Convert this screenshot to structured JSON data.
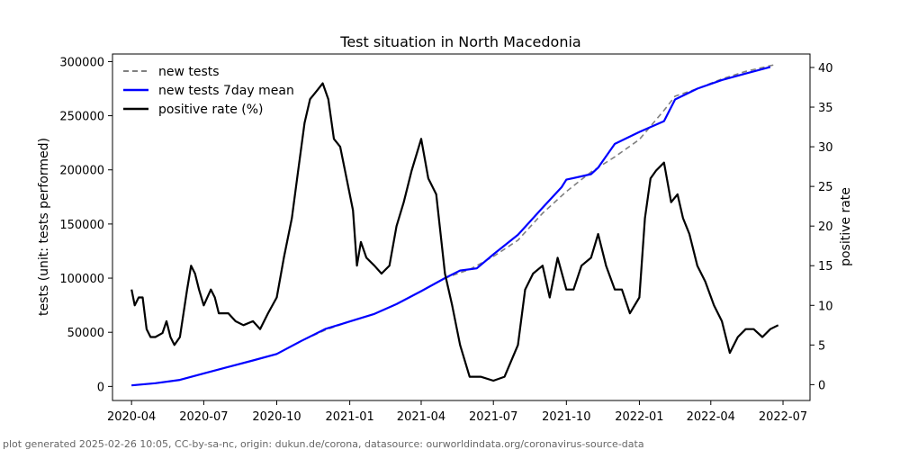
{
  "chart_data": {
    "type": "line",
    "title": "Test situation in North Macedonia",
    "ylabel_left": "tests (unit: tests performed)",
    "ylabel_right": "positive rate",
    "xlim": [
      "2020-03-08",
      "2022-08-04"
    ],
    "ylim_left": [
      -13000,
      307000
    ],
    "ylim_right": [
      -2,
      41.7
    ],
    "x_ticks": [
      "2020-04",
      "2020-07",
      "2020-10",
      "2021-01",
      "2021-04",
      "2021-07",
      "2021-10",
      "2022-01",
      "2022-04",
      "2022-07"
    ],
    "y_ticks_left": [
      0,
      50000,
      100000,
      150000,
      200000,
      250000,
      300000
    ],
    "y_ticks_right": [
      0,
      5,
      10,
      15,
      20,
      25,
      30,
      35,
      40
    ],
    "legend_position": "top-left",
    "series": [
      {
        "name": "new tests",
        "axis": "left",
        "color": "#808080",
        "style": "dashed",
        "points": [
          [
            "2020-04-01",
            1000
          ],
          [
            "2020-05-01",
            3000
          ],
          [
            "2020-06-01",
            6000
          ],
          [
            "2020-07-01",
            12000
          ],
          [
            "2020-08-01",
            18000
          ],
          [
            "2020-09-01",
            24000
          ],
          [
            "2020-10-01",
            30000
          ],
          [
            "2020-11-01",
            42000
          ],
          [
            "2020-12-01",
            52000
          ],
          [
            "2021-01-01",
            60000
          ],
          [
            "2021-02-01",
            67000
          ],
          [
            "2021-03-01",
            76000
          ],
          [
            "2021-04-01",
            88000
          ],
          [
            "2021-05-01",
            100000
          ],
          [
            "2021-06-01",
            108000
          ],
          [
            "2021-07-01",
            120000
          ],
          [
            "2021-08-01",
            135000
          ],
          [
            "2021-09-01",
            160000
          ],
          [
            "2021-10-01",
            180000
          ],
          [
            "2021-11-01",
            198000
          ],
          [
            "2021-12-01",
            212000
          ],
          [
            "2022-01-01",
            228000
          ],
          [
            "2022-02-01",
            255000
          ],
          [
            "2022-02-15",
            268000
          ],
          [
            "2022-03-15",
            275000
          ],
          [
            "2022-04-15",
            284000
          ],
          [
            "2022-05-15",
            291000
          ],
          [
            "2022-06-20",
            297000
          ]
        ]
      },
      {
        "name": "new tests 7day mean",
        "axis": "left",
        "color": "#0000ff",
        "style": "solid",
        "points": [
          [
            "2020-04-01",
            1000
          ],
          [
            "2020-05-01",
            3000
          ],
          [
            "2020-06-01",
            6000
          ],
          [
            "2020-07-01",
            12000
          ],
          [
            "2020-08-01",
            18000
          ],
          [
            "2020-09-01",
            24000
          ],
          [
            "2020-10-01",
            30000
          ],
          [
            "2020-11-01",
            42000
          ],
          [
            "2020-12-01",
            53000
          ],
          [
            "2021-01-01",
            60000
          ],
          [
            "2021-02-01",
            67000
          ],
          [
            "2021-03-01",
            76000
          ],
          [
            "2021-04-01",
            88000
          ],
          [
            "2021-05-01",
            100000
          ],
          [
            "2021-05-20",
            107000
          ],
          [
            "2021-06-10",
            109000
          ],
          [
            "2021-07-01",
            122000
          ],
          [
            "2021-08-01",
            140000
          ],
          [
            "2021-09-01",
            165000
          ],
          [
            "2021-09-25",
            184000
          ],
          [
            "2021-10-01",
            191000
          ],
          [
            "2021-11-01",
            196000
          ],
          [
            "2021-11-10",
            202000
          ],
          [
            "2021-12-01",
            224000
          ],
          [
            "2022-01-01",
            235000
          ],
          [
            "2022-02-01",
            245000
          ],
          [
            "2022-02-15",
            265000
          ],
          [
            "2022-03-15",
            275000
          ],
          [
            "2022-04-15",
            283000
          ],
          [
            "2022-05-15",
            289000
          ],
          [
            "2022-06-15",
            295000
          ]
        ]
      },
      {
        "name": "positive rate (%)",
        "axis": "right",
        "color": "#000000",
        "style": "solid",
        "points": [
          [
            "2020-04-01",
            12
          ],
          [
            "2020-04-05",
            10
          ],
          [
            "2020-04-10",
            11
          ],
          [
            "2020-04-15",
            11
          ],
          [
            "2020-04-20",
            7
          ],
          [
            "2020-04-25",
            6
          ],
          [
            "2020-05-01",
            6
          ],
          [
            "2020-05-10",
            6.5
          ],
          [
            "2020-05-15",
            8
          ],
          [
            "2020-05-20",
            6
          ],
          [
            "2020-05-25",
            5
          ],
          [
            "2020-06-01",
            6
          ],
          [
            "2020-06-10",
            12
          ],
          [
            "2020-06-15",
            15
          ],
          [
            "2020-06-20",
            14
          ],
          [
            "2020-06-25",
            12
          ],
          [
            "2020-07-01",
            10
          ],
          [
            "2020-07-10",
            12
          ],
          [
            "2020-07-15",
            11
          ],
          [
            "2020-07-20",
            9
          ],
          [
            "2020-08-01",
            9
          ],
          [
            "2020-08-10",
            8
          ],
          [
            "2020-08-20",
            7.5
          ],
          [
            "2020-09-01",
            8
          ],
          [
            "2020-09-10",
            7
          ],
          [
            "2020-09-20",
            9
          ],
          [
            "2020-10-01",
            11
          ],
          [
            "2020-10-10",
            16
          ],
          [
            "2020-10-20",
            21
          ],
          [
            "2020-10-28",
            27
          ],
          [
            "2020-11-05",
            33
          ],
          [
            "2020-11-12",
            36
          ],
          [
            "2020-11-20",
            37
          ],
          [
            "2020-11-28",
            38
          ],
          [
            "2020-12-05",
            36
          ],
          [
            "2020-12-12",
            31
          ],
          [
            "2020-12-20",
            30
          ],
          [
            "2020-12-28",
            26
          ],
          [
            "2021-01-05",
            22
          ],
          [
            "2021-01-10",
            15
          ],
          [
            "2021-01-15",
            18
          ],
          [
            "2021-01-22",
            16
          ],
          [
            "2021-02-01",
            15
          ],
          [
            "2021-02-10",
            14
          ],
          [
            "2021-02-20",
            15
          ],
          [
            "2021-03-01",
            20
          ],
          [
            "2021-03-10",
            23
          ],
          [
            "2021-03-20",
            27
          ],
          [
            "2021-04-01",
            31
          ],
          [
            "2021-04-10",
            26
          ],
          [
            "2021-04-20",
            24
          ],
          [
            "2021-05-01",
            14
          ],
          [
            "2021-05-10",
            10
          ],
          [
            "2021-05-20",
            5
          ],
          [
            "2021-06-01",
            1
          ],
          [
            "2021-06-15",
            1
          ],
          [
            "2021-07-01",
            0.5
          ],
          [
            "2021-07-15",
            1
          ],
          [
            "2021-08-01",
            5
          ],
          [
            "2021-08-10",
            12
          ],
          [
            "2021-08-20",
            14
          ],
          [
            "2021-09-01",
            15
          ],
          [
            "2021-09-10",
            11
          ],
          [
            "2021-09-20",
            16
          ],
          [
            "2021-10-01",
            12
          ],
          [
            "2021-10-10",
            12
          ],
          [
            "2021-10-20",
            15
          ],
          [
            "2021-11-01",
            16
          ],
          [
            "2021-11-10",
            19
          ],
          [
            "2021-11-20",
            15
          ],
          [
            "2021-12-01",
            12
          ],
          [
            "2021-12-10",
            12
          ],
          [
            "2021-12-20",
            9
          ],
          [
            "2022-01-01",
            11
          ],
          [
            "2022-01-08",
            21
          ],
          [
            "2022-01-15",
            26
          ],
          [
            "2022-01-22",
            27
          ],
          [
            "2022-02-01",
            28
          ],
          [
            "2022-02-10",
            23
          ],
          [
            "2022-02-18",
            24
          ],
          [
            "2022-02-25",
            21
          ],
          [
            "2022-03-05",
            19
          ],
          [
            "2022-03-15",
            15
          ],
          [
            "2022-03-25",
            13
          ],
          [
            "2022-04-05",
            10
          ],
          [
            "2022-04-15",
            8
          ],
          [
            "2022-04-25",
            4
          ],
          [
            "2022-05-05",
            6
          ],
          [
            "2022-05-15",
            7
          ],
          [
            "2022-05-25",
            7
          ],
          [
            "2022-06-05",
            6
          ],
          [
            "2022-06-15",
            7
          ],
          [
            "2022-06-25",
            7.5
          ]
        ]
      }
    ]
  },
  "footer": "plot generated 2025-02-26 10:05, CC-by-sa-nc, origin: dukun.de/corona, datasource: ourworldindata.org/coronavirus-source-data"
}
